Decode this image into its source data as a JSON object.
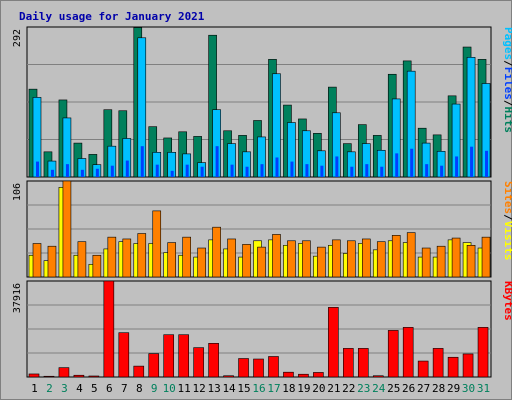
{
  "title": "Daily usage for January 2021",
  "colors": {
    "hits": "#00805c",
    "files": "#0040ff",
    "pages": "#00c0ff",
    "visits": "#ffff00",
    "sites": "#ff8000",
    "kbytes": "#ff0000",
    "weekend_label": "#00805c",
    "weekday_label": "#000000"
  },
  "side_labels": {
    "top": [
      "Pages",
      "/",
      "Files",
      "/",
      "Hits"
    ],
    "middle": [
      "Sites",
      "/",
      "Visits"
    ],
    "bottom": [
      "KBytes"
    ]
  },
  "days": [
    "1",
    "2",
    "3",
    "4",
    "5",
    "6",
    "7",
    "8",
    "9",
    "10",
    "11",
    "12",
    "13",
    "14",
    "15",
    "16",
    "17",
    "18",
    "19",
    "20",
    "21",
    "22",
    "23",
    "24",
    "25",
    "26",
    "27",
    "28",
    "29",
    "30",
    "31"
  ],
  "weekend_days": [
    "2",
    "3",
    "9",
    "10",
    "16",
    "17",
    "23",
    "24",
    "30",
    "31"
  ],
  "chart_data": [
    {
      "type": "bar",
      "panel": "hits-files-pages",
      "ymax_label": "292",
      "ylim": [
        0,
        292
      ],
      "categories": [
        "1",
        "2",
        "3",
        "4",
        "5",
        "6",
        "7",
        "8",
        "9",
        "10",
        "11",
        "12",
        "13",
        "14",
        "15",
        "16",
        "17",
        "18",
        "19",
        "20",
        "21",
        "22",
        "23",
        "24",
        "25",
        "26",
        "27",
        "28",
        "29",
        "30",
        "31"
      ],
      "series": [
        {
          "name": "Hits",
          "values": [
            171,
            49,
            150,
            66,
            44,
            131,
            129,
            291,
            98,
            76,
            88,
            79,
            276,
            90,
            81,
            110,
            229,
            140,
            113,
            85,
            175,
            65,
            102,
            81,
            200,
            226,
            95,
            82,
            158,
            253,
            229
          ]
        },
        {
          "name": "Files",
          "values": [
            30,
            14,
            25,
            14,
            16,
            22,
            32,
            60,
            24,
            12,
            24,
            20,
            60,
            24,
            20,
            25,
            38,
            30,
            25,
            22,
            40,
            20,
            25,
            20,
            46,
            55,
            25,
            22,
            40,
            59,
            51
          ]
        },
        {
          "name": "Pages",
          "values": [
            155,
            31,
            115,
            36,
            24,
            60,
            75,
            271,
            48,
            48,
            45,
            28,
            131,
            65,
            49,
            78,
            201,
            106,
            90,
            51,
            125,
            49,
            65,
            52,
            152,
            206,
            66,
            50,
            142,
            233,
            182
          ]
        }
      ]
    },
    {
      "type": "bar",
      "panel": "visits-sites",
      "ymax_label": "106",
      "ylim": [
        0,
        106
      ],
      "categories": [
        "1",
        "2",
        "3",
        "4",
        "5",
        "6",
        "7",
        "8",
        "9",
        "10",
        "11",
        "12",
        "13",
        "14",
        "15",
        "16",
        "17",
        "18",
        "19",
        "20",
        "21",
        "22",
        "23",
        "24",
        "25",
        "26",
        "27",
        "28",
        "29",
        "30",
        "31"
      ],
      "series": [
        {
          "name": "Visits",
          "values": [
            24,
            18,
            99,
            24,
            14,
            31,
            39,
            37,
            37,
            27,
            24,
            22,
            41,
            31,
            22,
            40,
            41,
            35,
            37,
            23,
            35,
            26,
            37,
            30,
            40,
            38,
            22,
            22,
            41,
            38,
            32
          ]
        },
        {
          "name": "Sites",
          "values": [
            37,
            34,
            106,
            39,
            24,
            44,
            42,
            48,
            73,
            38,
            44,
            32,
            55,
            42,
            36,
            33,
            47,
            40,
            40,
            33,
            41,
            40,
            42,
            39,
            46,
            49,
            32,
            34,
            43,
            35,
            44
          ]
        }
      ]
    },
    {
      "type": "bar",
      "panel": "kbytes",
      "ymax_label": "37916",
      "ylim": [
        0,
        37916
      ],
      "categories": [
        "1",
        "2",
        "3",
        "4",
        "5",
        "6",
        "7",
        "8",
        "9",
        "10",
        "11",
        "12",
        "13",
        "14",
        "15",
        "16",
        "17",
        "18",
        "19",
        "20",
        "21",
        "22",
        "23",
        "24",
        "25",
        "26",
        "27",
        "28",
        "29",
        "30",
        "31"
      ],
      "series": [
        {
          "name": "KBytes",
          "values": [
            1200,
            300,
            3700,
            700,
            400,
            37916,
            17500,
            4300,
            9200,
            16700,
            16700,
            11600,
            13300,
            500,
            7300,
            7100,
            8100,
            1900,
            1100,
            1800,
            27500,
            11300,
            11300,
            500,
            18400,
            19600,
            6300,
            11300,
            7800,
            9100,
            19600
          ]
        }
      ]
    }
  ]
}
